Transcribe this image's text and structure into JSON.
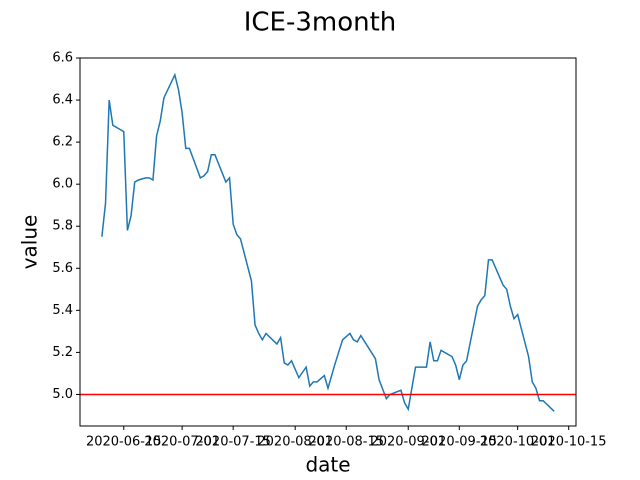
{
  "chart_data": {
    "type": "line",
    "title": "ICE-3month",
    "x_label": "date",
    "y_label": "value",
    "x": [
      "2020-06-09",
      "2020-06-10",
      "2020-06-11",
      "2020-06-12",
      "2020-06-14",
      "2020-06-15",
      "2020-06-16",
      "2020-06-17",
      "2020-06-18",
      "2020-06-19",
      "2020-06-21",
      "2020-06-22",
      "2020-06-23",
      "2020-06-24",
      "2020-06-25",
      "2020-06-26",
      "2020-06-29",
      "2020-06-30",
      "2020-07-01",
      "2020-07-02",
      "2020-07-03",
      "2020-07-06",
      "2020-07-07",
      "2020-07-08",
      "2020-07-09",
      "2020-07-10",
      "2020-07-13",
      "2020-07-14",
      "2020-07-15",
      "2020-07-16",
      "2020-07-17",
      "2020-07-20",
      "2020-07-21",
      "2020-07-22",
      "2020-07-23",
      "2020-07-24",
      "2020-07-27",
      "2020-07-28",
      "2020-07-29",
      "2020-07-30",
      "2020-07-31",
      "2020-08-02",
      "2020-08-04",
      "2020-08-05",
      "2020-08-06",
      "2020-08-07",
      "2020-08-09",
      "2020-08-10",
      "2020-08-12",
      "2020-08-14",
      "2020-08-16",
      "2020-08-17",
      "2020-08-18",
      "2020-08-19",
      "2020-08-23",
      "2020-08-24",
      "2020-08-26",
      "2020-08-27",
      "2020-08-30",
      "2020-08-31",
      "2020-09-01",
      "2020-09-02",
      "2020-09-03",
      "2020-09-06",
      "2020-09-07",
      "2020-09-08",
      "2020-09-09",
      "2020-09-10",
      "2020-09-13",
      "2020-09-14",
      "2020-09-15",
      "2020-09-16",
      "2020-09-17",
      "2020-09-20",
      "2020-09-21",
      "2020-09-22",
      "2020-09-23",
      "2020-09-24",
      "2020-09-27",
      "2020-09-28",
      "2020-09-29",
      "2020-09-30",
      "2020-10-01",
      "2020-10-04",
      "2020-10-05",
      "2020-10-06",
      "2020-10-07",
      "2020-10-08",
      "2020-10-11"
    ],
    "series": [
      {
        "color": "#1f77b4",
        "values": [
          5.75,
          5.91,
          6.4,
          6.28,
          6.26,
          6.25,
          5.78,
          5.85,
          6.01,
          6.02,
          6.03,
          6.03,
          6.02,
          6.23,
          6.3,
          6.41,
          6.52,
          6.45,
          6.34,
          6.17,
          6.17,
          6.03,
          6.04,
          6.06,
          6.14,
          6.14,
          6.01,
          6.03,
          5.81,
          5.76,
          5.74,
          5.54,
          5.33,
          5.29,
          5.26,
          5.29,
          5.24,
          5.27,
          5.15,
          5.14,
          5.16,
          5.08,
          5.13,
          5.04,
          5.06,
          5.06,
          5.09,
          5.03,
          5.15,
          5.26,
          5.29,
          5.26,
          5.25,
          5.28,
          5.17,
          5.07,
          4.98,
          5.0,
          5.02,
          4.96,
          4.93,
          5.03,
          5.13,
          5.13,
          5.25,
          5.16,
          5.16,
          5.21,
          5.18,
          5.14,
          5.07,
          5.14,
          5.16,
          5.42,
          5.45,
          5.47,
          5.64,
          5.64,
          5.52,
          5.5,
          5.42,
          5.36,
          5.38,
          5.18,
          5.06,
          5.03,
          4.97,
          4.97,
          4.92
        ]
      }
    ],
    "xlim": [
      "2020-06-03",
      "2020-10-17"
    ],
    "xticks": [
      "2020-06-15",
      "2020-07-01",
      "2020-07-15",
      "2020-08-01",
      "2020-08-15",
      "2020-09-01",
      "2020-09-15",
      "2020-10-01",
      "2020-10-15"
    ],
    "ylim": [
      4.85,
      6.6
    ],
    "yticks": [
      {
        "value": 5.0,
        "label": "5.0"
      },
      5.2,
      5.4,
      5.6,
      5.8,
      {
        "value": 6.0,
        "label": "6.0"
      },
      6.2,
      6.4,
      6.6
    ],
    "hline": {
      "value": 5.0,
      "color": "red"
    },
    "grid": false
  }
}
